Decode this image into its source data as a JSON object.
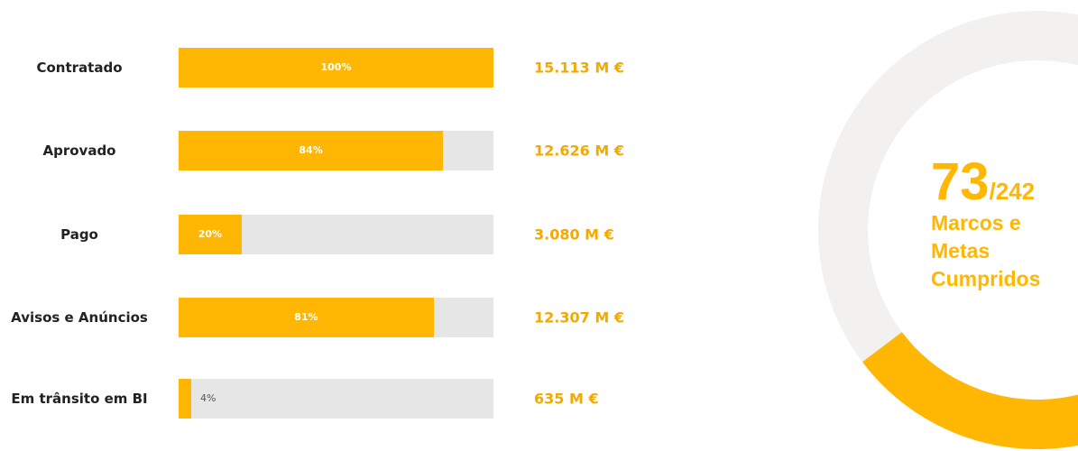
{
  "chart_data": [
    {
      "type": "hbar",
      "categories": [
        "Contratado",
        "Aprovado",
        "Pago",
        "Avisos e Anúncios",
        "Em trânsito em BI"
      ],
      "values": [
        100,
        84,
        20,
        81,
        4
      ],
      "value_labels": [
        "100%",
        "84%",
        "20%",
        "81%",
        "4%"
      ],
      "amount_labels": [
        "15.113 M €",
        "12.626 M €",
        "3.080 M €",
        "12.307 M €",
        "635 M €"
      ],
      "xlim": [
        0,
        100
      ],
      "color": "#ffb703",
      "track_color": "#e6e6e6"
    },
    {
      "type": "donut",
      "values": [
        73
      ],
      "value_labels": [
        "73"
      ],
      "total": 242,
      "total_label": "/242",
      "label": "Marcos e Metas Cumpridos",
      "color": "#ffb703",
      "track_color": "#f2f1f0"
    }
  ]
}
